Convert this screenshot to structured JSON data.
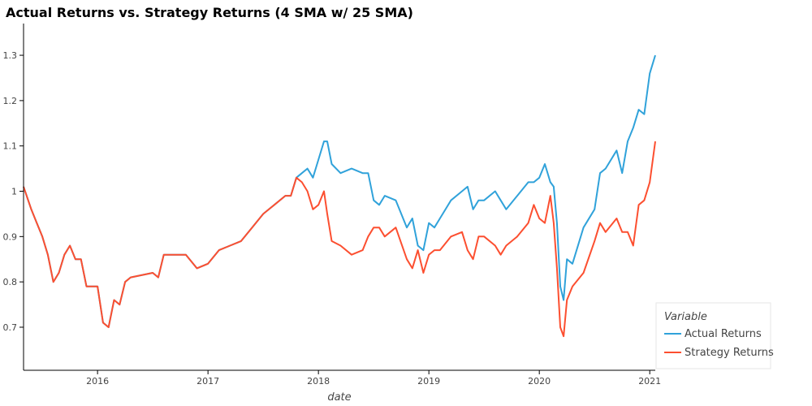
{
  "chart_data": {
    "type": "line",
    "title": "Actual Returns vs. Strategy Returns (4 SMA w/ 25 SMA)",
    "xlabel": "date",
    "ylabel": "",
    "xlim": [
      2015.33,
      2021.05
    ],
    "ylim": [
      0.605,
      1.37
    ],
    "xticks": [
      2016,
      2017,
      2018,
      2019,
      2020,
      2021
    ],
    "xtick_labels": [
      "2016",
      "2017",
      "2018",
      "2019",
      "2020",
      "2021"
    ],
    "yticks": [
      0.7,
      0.8,
      0.9,
      1.0,
      1.1,
      1.2,
      1.3
    ],
    "ytick_labels": [
      "0.7",
      "0.8",
      "0.9",
      "1",
      "1.1",
      "1.2",
      "1.3"
    ],
    "legend": {
      "title": "Variable",
      "position": "bottom-right"
    },
    "series": [
      {
        "name": "Actual Returns",
        "color": "#30a2da",
        "x": [
          2015.33,
          2015.4,
          2015.45,
          2015.5,
          2015.55,
          2015.6,
          2015.65,
          2015.7,
          2015.75,
          2015.8,
          2015.85,
          2015.9,
          2015.95,
          2016.0,
          2016.05,
          2016.1,
          2016.15,
          2016.2,
          2016.25,
          2016.3,
          2016.5,
          2016.55,
          2016.6,
          2016.7,
          2016.8,
          2016.9,
          2017.0,
          2017.1,
          2017.2,
          2017.3,
          2017.4,
          2017.5,
          2017.6,
          2017.7,
          2017.75,
          2017.8,
          2017.85,
          2017.9,
          2017.95,
          2018.0,
          2018.05,
          2018.08,
          2018.12,
          2018.2,
          2018.3,
          2018.4,
          2018.45,
          2018.5,
          2018.55,
          2018.6,
          2018.7,
          2018.8,
          2018.85,
          2018.9,
          2018.95,
          2019.0,
          2019.05,
          2019.1,
          2019.2,
          2019.3,
          2019.35,
          2019.4,
          2019.45,
          2019.5,
          2019.6,
          2019.65,
          2019.7,
          2019.8,
          2019.9,
          2019.95,
          2020.0,
          2020.05,
          2020.1,
          2020.13,
          2020.16,
          2020.19,
          2020.22,
          2020.25,
          2020.3,
          2020.4,
          2020.5,
          2020.55,
          2020.6,
          2020.7,
          2020.75,
          2020.8,
          2020.85,
          2020.9,
          2020.95,
          2021.0,
          2021.05
        ],
        "values": [
          1.01,
          0.96,
          0.93,
          0.9,
          0.86,
          0.8,
          0.82,
          0.86,
          0.88,
          0.85,
          0.85,
          0.79,
          0.79,
          0.79,
          0.71,
          0.7,
          0.76,
          0.75,
          0.8,
          0.81,
          0.82,
          0.81,
          0.86,
          0.86,
          0.86,
          0.83,
          0.84,
          0.87,
          0.88,
          0.89,
          0.92,
          0.95,
          0.97,
          0.99,
          0.99,
          1.03,
          1.04,
          1.05,
          1.03,
          1.07,
          1.11,
          1.11,
          1.06,
          1.04,
          1.05,
          1.04,
          1.04,
          0.98,
          0.97,
          0.99,
          0.98,
          0.92,
          0.94,
          0.88,
          0.87,
          0.93,
          0.92,
          0.94,
          0.98,
          1.0,
          1.01,
          0.96,
          0.98,
          0.98,
          1.0,
          0.98,
          0.96,
          0.99,
          1.02,
          1.02,
          1.03,
          1.06,
          1.02,
          1.01,
          0.93,
          0.79,
          0.76,
          0.85,
          0.84,
          0.92,
          0.96,
          1.04,
          1.05,
          1.09,
          1.04,
          1.11,
          1.14,
          1.18,
          1.17,
          1.26,
          1.3
        ]
      },
      {
        "name": "Strategy Returns",
        "color": "#fc4f30",
        "x": [
          2015.33,
          2015.4,
          2015.45,
          2015.5,
          2015.55,
          2015.6,
          2015.65,
          2015.7,
          2015.75,
          2015.8,
          2015.85,
          2015.9,
          2015.95,
          2016.0,
          2016.05,
          2016.1,
          2016.15,
          2016.2,
          2016.25,
          2016.3,
          2016.5,
          2016.55,
          2016.6,
          2016.7,
          2016.8,
          2016.9,
          2017.0,
          2017.1,
          2017.2,
          2017.3,
          2017.4,
          2017.5,
          2017.6,
          2017.7,
          2017.75,
          2017.8,
          2017.85,
          2017.9,
          2017.95,
          2018.0,
          2018.05,
          2018.08,
          2018.12,
          2018.2,
          2018.3,
          2018.4,
          2018.45,
          2018.5,
          2018.55,
          2018.6,
          2018.7,
          2018.8,
          2018.85,
          2018.9,
          2018.95,
          2019.0,
          2019.05,
          2019.1,
          2019.2,
          2019.3,
          2019.35,
          2019.4,
          2019.45,
          2019.5,
          2019.6,
          2019.65,
          2019.7,
          2019.8,
          2019.9,
          2019.95,
          2020.0,
          2020.05,
          2020.1,
          2020.13,
          2020.16,
          2020.19,
          2020.22,
          2020.25,
          2020.3,
          2020.4,
          2020.5,
          2020.55,
          2020.6,
          2020.7,
          2020.75,
          2020.8,
          2020.85,
          2020.9,
          2020.95,
          2021.0,
          2021.05
        ],
        "values": [
          1.01,
          0.96,
          0.93,
          0.9,
          0.86,
          0.8,
          0.82,
          0.86,
          0.88,
          0.85,
          0.85,
          0.79,
          0.79,
          0.79,
          0.71,
          0.7,
          0.76,
          0.75,
          0.8,
          0.81,
          0.82,
          0.81,
          0.86,
          0.86,
          0.86,
          0.83,
          0.84,
          0.87,
          0.88,
          0.89,
          0.92,
          0.95,
          0.97,
          0.99,
          0.99,
          1.03,
          1.02,
          1.0,
          0.96,
          0.97,
          1.0,
          0.95,
          0.89,
          0.88,
          0.86,
          0.87,
          0.9,
          0.92,
          0.92,
          0.9,
          0.92,
          0.85,
          0.83,
          0.87,
          0.82,
          0.86,
          0.87,
          0.87,
          0.9,
          0.91,
          0.87,
          0.85,
          0.9,
          0.9,
          0.88,
          0.86,
          0.88,
          0.9,
          0.93,
          0.97,
          0.94,
          0.93,
          0.99,
          0.93,
          0.83,
          0.7,
          0.68,
          0.76,
          0.79,
          0.82,
          0.89,
          0.93,
          0.91,
          0.94,
          0.91,
          0.91,
          0.88,
          0.97,
          0.98,
          1.02,
          1.11
        ]
      }
    ]
  }
}
